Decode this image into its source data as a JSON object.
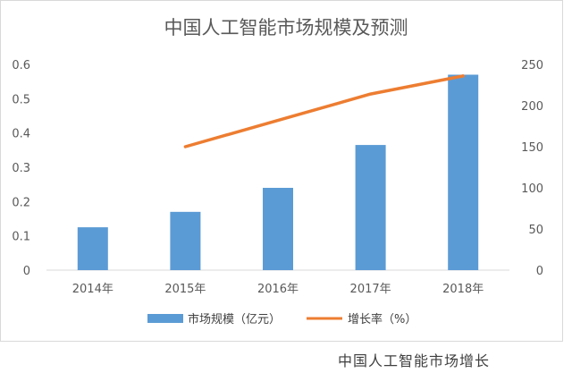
{
  "chart_data": {
    "type": "bar",
    "title": "中国人工智能市场规模及预测",
    "categories": [
      "2014年",
      "2015年",
      "2016年",
      "2017年",
      "2018年"
    ],
    "series": [
      {
        "name": "市场规模（亿元）",
        "type": "bar",
        "axis": "left",
        "values": [
          0.125,
          0.17,
          0.24,
          0.365,
          0.57
        ],
        "color": "#5B9BD5"
      },
      {
        "name": "增长率（%）",
        "type": "line",
        "axis": "right",
        "values": [
          null,
          150,
          182,
          214,
          236
        ],
        "color": "#ED7D31"
      }
    ],
    "y_left": {
      "ylim": [
        0,
        0.6
      ],
      "ticks": [
        "0",
        "0.1",
        "0.2",
        "0.3",
        "0.4",
        "0.5",
        "0.6"
      ]
    },
    "y_right": {
      "ylim": [
        0,
        250
      ],
      "ticks": [
        "0",
        "50",
        "100",
        "150",
        "200",
        "250"
      ]
    },
    "grid": false,
    "legend": "bottom"
  },
  "caption": "中国人工智能市场增长"
}
